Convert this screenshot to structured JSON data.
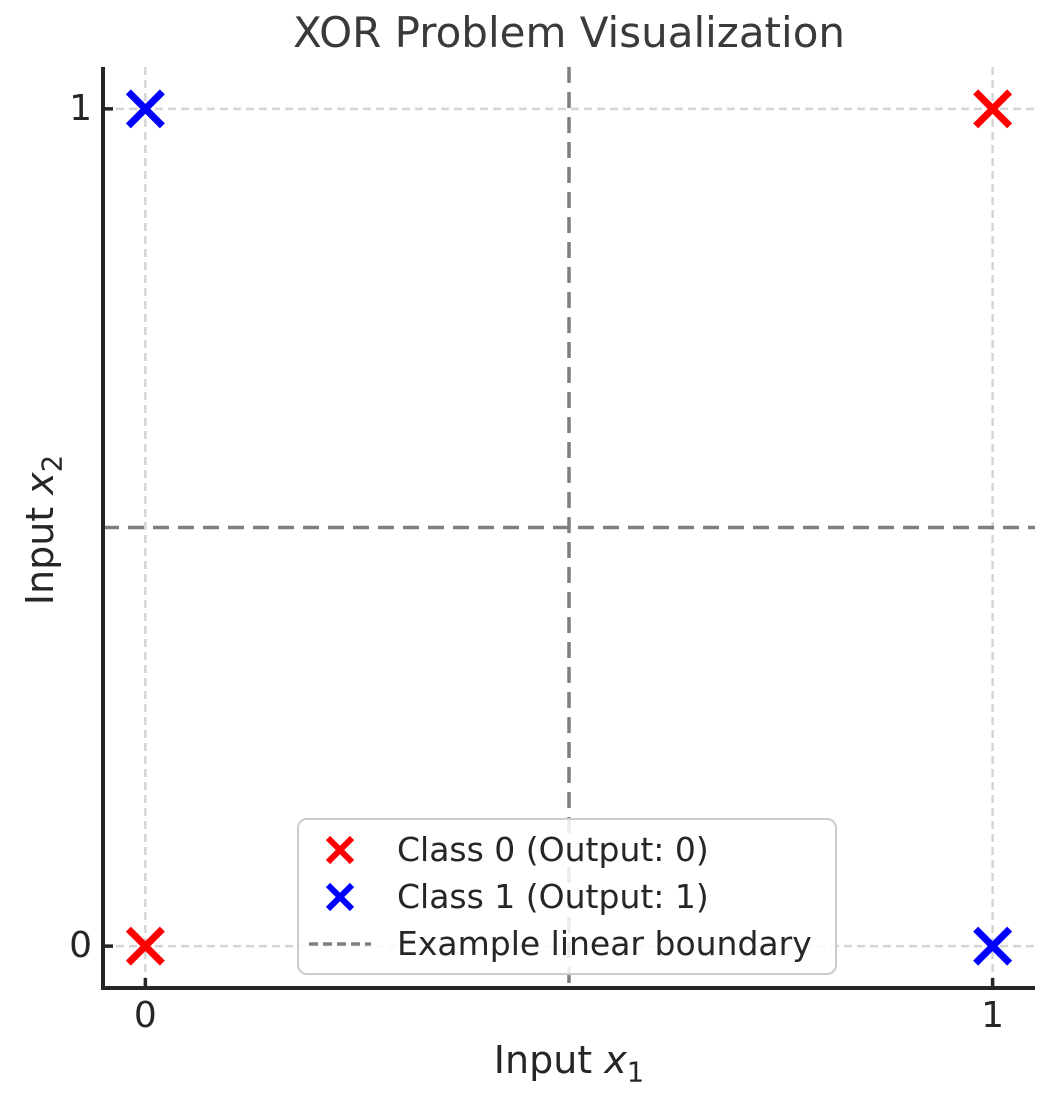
{
  "title": "XOR Problem Visualization",
  "axes": {
    "xlabel": {
      "text": "Input ",
      "var": "x",
      "sub": "1"
    },
    "ylabel": {
      "text": "Input ",
      "var": "x",
      "sub": "2"
    }
  },
  "chart_data": {
    "type": "scatter",
    "title": "XOR Problem Visualization",
    "xlabel": "Input x_1",
    "ylabel": "Input x_2",
    "xlim": [
      -0.05,
      1.05
    ],
    "ylim": [
      -0.05,
      1.05
    ],
    "xticks": [
      0,
      1
    ],
    "yticks": [
      0,
      1
    ],
    "grid": "on",
    "gridlines": {
      "x": [
        0,
        1
      ],
      "y": [
        0,
        1
      ]
    },
    "boundary_lines": {
      "x": 0.5,
      "y": 0.5,
      "label": "Example linear boundary"
    },
    "series": [
      {
        "name": "Class 0 (Output: 0)",
        "marker": "x",
        "color": "#ff0000",
        "points": [
          [
            0,
            0
          ],
          [
            1,
            1
          ]
        ]
      },
      {
        "name": "Class 1 (Output: 1)",
        "marker": "x",
        "color": "#0000ff",
        "points": [
          [
            0,
            1
          ],
          [
            1,
            0
          ]
        ]
      }
    ],
    "legend": {
      "position": "lower center",
      "entries": [
        {
          "label": "Class 0 (Output: 0)",
          "sample": "x-marker",
          "color": "#ff0000"
        },
        {
          "label": "Class 1 (Output: 1)",
          "sample": "x-marker",
          "color": "#0000ff"
        },
        {
          "label": "Example linear boundary",
          "sample": "dashed-line",
          "color": "#7f7f7f"
        }
      ]
    },
    "colors": {
      "grid": "#d5d5d5",
      "boundary": "#7f7f7f",
      "spine": "#262626",
      "text": "#262626"
    }
  }
}
